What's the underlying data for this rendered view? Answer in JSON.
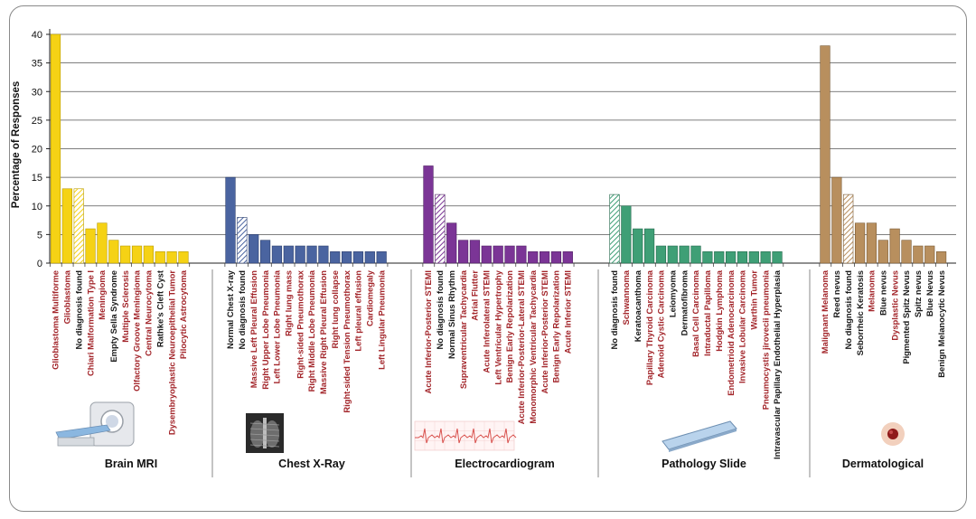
{
  "chart_data": {
    "type": "bar",
    "ylabel": "Percentage of Responses",
    "ylim": [
      0,
      40
    ],
    "yticks": [
      "0",
      "5",
      "10",
      "15",
      "20",
      "25",
      "30",
      "35",
      "40"
    ],
    "grid": true,
    "legend": "none",
    "label_colors": {
      "highlight": "#a3262b",
      "normal": "#1a1a1a"
    },
    "groups": [
      {
        "name": "Brain MRI",
        "color": "#f5d215",
        "edge": "#b89b00",
        "icon": "mri-scanner-icon",
        "bars": [
          {
            "label": "Glioblastoma Multiforme",
            "value": 40,
            "highlight": true,
            "hatched": false
          },
          {
            "label": "Glioblastoma",
            "value": 13,
            "highlight": true,
            "hatched": false
          },
          {
            "label": "No diagnosis found",
            "value": 13,
            "highlight": false,
            "hatched": true
          },
          {
            "label": "Chiari Malformation Type I",
            "value": 6,
            "highlight": true,
            "hatched": false
          },
          {
            "label": "Meningioma",
            "value": 7,
            "highlight": true,
            "hatched": false
          },
          {
            "label": "Empty Sella Syndrome",
            "value": 4,
            "highlight": false,
            "hatched": false
          },
          {
            "label": "Multiple Sclerosis",
            "value": 3,
            "highlight": true,
            "hatched": false
          },
          {
            "label": "Olfactory Groove Meningioma",
            "value": 3,
            "highlight": true,
            "hatched": false
          },
          {
            "label": "Central Neurocytoma",
            "value": 3,
            "highlight": true,
            "hatched": false
          },
          {
            "label": "Rathke's Cleft Cyst",
            "value": 2,
            "highlight": false,
            "hatched": false
          },
          {
            "label": "Dysembryoplastic Neuroepithelial Tumor",
            "value": 2,
            "highlight": true,
            "hatched": false
          },
          {
            "label": "Pilocytic Astrocytoma",
            "value": 2,
            "highlight": true,
            "hatched": false
          }
        ]
      },
      {
        "name": "Chest X-Ray",
        "color": "#4a64a0",
        "edge": "#2c3f6e",
        "icon": "chest-xray-icon",
        "bars": [
          {
            "label": "Normal Chest X-ray",
            "value": 15,
            "highlight": false,
            "hatched": false
          },
          {
            "label": "No diagnosis found",
            "value": 8,
            "highlight": false,
            "hatched": true
          },
          {
            "label": "Massive Left Pleural Effusion",
            "value": 5,
            "highlight": true,
            "hatched": false
          },
          {
            "label": "Right Upper Lobe Pneumonia",
            "value": 4,
            "highlight": true,
            "hatched": false
          },
          {
            "label": "Left Lower Lobe Pneumonia",
            "value": 3,
            "highlight": true,
            "hatched": false
          },
          {
            "label": "Right lung mass",
            "value": 3,
            "highlight": true,
            "hatched": false
          },
          {
            "label": "Right-sided Pneumothorax",
            "value": 3,
            "highlight": true,
            "hatched": false
          },
          {
            "label": "Right Middle Lobe Pneumonia",
            "value": 3,
            "highlight": true,
            "hatched": false
          },
          {
            "label": "Massive Right Pleural Effusion",
            "value": 3,
            "highlight": true,
            "hatched": false
          },
          {
            "label": "Right lung collapse",
            "value": 2,
            "highlight": true,
            "hatched": false
          },
          {
            "label": "Right-sided Tension Pneumothorax",
            "value": 2,
            "highlight": true,
            "hatched": false
          },
          {
            "label": "Left pleural effusion",
            "value": 2,
            "highlight": true,
            "hatched": false
          },
          {
            "label": "Cardiomegaly",
            "value": 2,
            "highlight": true,
            "hatched": false
          },
          {
            "label": "Left Lingular Pneumonia",
            "value": 2,
            "highlight": true,
            "hatched": false
          }
        ]
      },
      {
        "name": "Electrocardiogram",
        "color": "#7b3596",
        "edge": "#4e1e63",
        "icon": "ecg-strip-icon",
        "bars": [
          {
            "label": "Acute Inferior-Posterior STEMI",
            "value": 17,
            "highlight": true,
            "hatched": false
          },
          {
            "label": "No diagnosis found",
            "value": 12,
            "highlight": false,
            "hatched": true
          },
          {
            "label": "Normal Sinus Rhythm",
            "value": 7,
            "highlight": false,
            "hatched": false
          },
          {
            "label": "Supraventricular Tachycardia",
            "value": 4,
            "highlight": true,
            "hatched": false
          },
          {
            "label": "Atrial Flutter",
            "value": 4,
            "highlight": true,
            "hatched": false
          },
          {
            "label": "Acute Inferolateral STEMI",
            "value": 3,
            "highlight": true,
            "hatched": false
          },
          {
            "label": "Left Ventricular Hypertrophy",
            "value": 3,
            "highlight": true,
            "hatched": false
          },
          {
            "label": "Benign Early Repolarization",
            "value": 3,
            "highlight": true,
            "hatched": false
          },
          {
            "label": "Acute Inferior-Posterior-Lateral STEMI",
            "value": 3,
            "highlight": true,
            "hatched": false
          },
          {
            "label": "Monomorphic Ventricular Tachycardia",
            "value": 2,
            "highlight": true,
            "hatched": false
          },
          {
            "label": "Acute Inferior-Posterior STEMI",
            "value": 2,
            "highlight": true,
            "hatched": false
          },
          {
            "label": "Benign Early Repolarization",
            "value": 2,
            "highlight": true,
            "hatched": false
          },
          {
            "label": "Acute Inferior STEMI",
            "value": 2,
            "highlight": true,
            "hatched": false
          }
        ]
      },
      {
        "name": "Pathology Slide",
        "color": "#3f9f76",
        "edge": "#24694c",
        "icon": "glass-slide-icon",
        "bars": [
          {
            "label": "No diagnosis found",
            "value": 12,
            "highlight": false,
            "hatched": true
          },
          {
            "label": "Schwannoma",
            "value": 10,
            "highlight": true,
            "hatched": false
          },
          {
            "label": "Keratoacanthoma",
            "value": 6,
            "highlight": false,
            "hatched": false
          },
          {
            "label": "Papillary Thyroid Carcinoma",
            "value": 6,
            "highlight": true,
            "hatched": false
          },
          {
            "label": "Adenoid Cystic Carcinoma",
            "value": 3,
            "highlight": true,
            "hatched": false
          },
          {
            "label": "Leiomyoma",
            "value": 3,
            "highlight": false,
            "hatched": false
          },
          {
            "label": "Dermatofibroma",
            "value": 3,
            "highlight": false,
            "hatched": false
          },
          {
            "label": "Basal Cell Carcinoma",
            "value": 3,
            "highlight": true,
            "hatched": false
          },
          {
            "label": "Intraductal Papilloma",
            "value": 2,
            "highlight": true,
            "hatched": false
          },
          {
            "label": "Hodgkin Lymphoma",
            "value": 2,
            "highlight": true,
            "hatched": false
          },
          {
            "label": "Endometrioid Adenocarcinoma",
            "value": 2,
            "highlight": true,
            "hatched": false
          },
          {
            "label": "Invasive Lobular Carcinoma",
            "value": 2,
            "highlight": true,
            "hatched": false
          },
          {
            "label": "Warthin Tumor",
            "value": 2,
            "highlight": true,
            "hatched": false
          },
          {
            "label": "Pneumocystis jirovecii pneumonia",
            "value": 2,
            "highlight": true,
            "hatched": false
          },
          {
            "label": "Intravascular Papillary Endothelial Hyperplasia",
            "value": 2,
            "highlight": false,
            "hatched": false
          }
        ]
      },
      {
        "name": "Dermatological",
        "color": "#b88f5e",
        "edge": "#7a5a34",
        "icon": "skin-lesion-icon",
        "bars": [
          {
            "label": "Malignant Melanoma",
            "value": 38,
            "highlight": true,
            "hatched": false
          },
          {
            "label": "Reed nevus",
            "value": 15,
            "highlight": false,
            "hatched": false
          },
          {
            "label": "No diagnosis found",
            "value": 12,
            "highlight": false,
            "hatched": true
          },
          {
            "label": "Seborrheic Keratosis",
            "value": 7,
            "highlight": false,
            "hatched": false
          },
          {
            "label": "Melanoma",
            "value": 7,
            "highlight": true,
            "hatched": false
          },
          {
            "label": "Blue nevus",
            "value": 4,
            "highlight": false,
            "hatched": false
          },
          {
            "label": "Dysplastic Nevus",
            "value": 6,
            "highlight": true,
            "hatched": false
          },
          {
            "label": "Pigmented Spitz Nevus",
            "value": 4,
            "highlight": false,
            "hatched": false
          },
          {
            "label": "Spitz nevus",
            "value": 3,
            "highlight": false,
            "hatched": false
          },
          {
            "label": "Blue Nevus",
            "value": 3,
            "highlight": false,
            "hatched": false
          },
          {
            "label": "Benign Melanocytic Nevus",
            "value": 2,
            "highlight": false,
            "hatched": false
          }
        ]
      }
    ]
  }
}
